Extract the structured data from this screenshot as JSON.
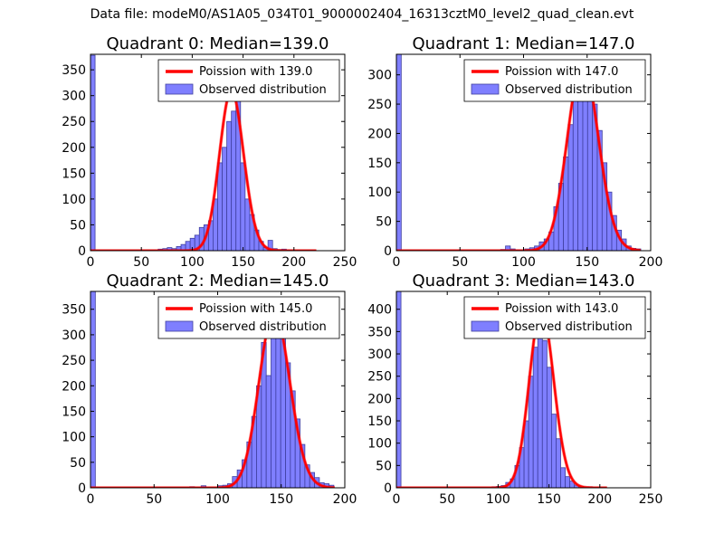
{
  "suptitle": "Data file: modeM0/AS1A05_034T01_9000002404_16313cztM0_level2_quad_clean.evt",
  "colors": {
    "hist_fill": "#7f7fff",
    "hist_edge": "#3f3f9f",
    "curve": "#ff0000"
  },
  "chart_data": [
    {
      "type": "bar",
      "title": "Quadrant 0: Median=139.0",
      "median": 139.0,
      "xlim": [
        0,
        250
      ],
      "ylim": [
        0,
        380
      ],
      "xticks": [
        0,
        50,
        100,
        150,
        200,
        250
      ],
      "yticks": [
        0,
        50,
        100,
        150,
        200,
        250,
        300,
        350
      ],
      "legend": {
        "placement": "top-right",
        "entries": [
          "Poission with 139.0",
          "Observed distribution"
        ]
      },
      "bins": [
        {
          "x0": 0,
          "x1": 4.5,
          "v": 378
        },
        {
          "x0": 62,
          "x1": 66.5,
          "v": 1
        },
        {
          "x0": 66.5,
          "x1": 71,
          "v": 3
        },
        {
          "x0": 71,
          "x1": 75.5,
          "v": 4
        },
        {
          "x0": 75.5,
          "x1": 80,
          "v": 6
        },
        {
          "x0": 80,
          "x1": 84.5,
          "v": 4
        },
        {
          "x0": 84.5,
          "x1": 89,
          "v": 8
        },
        {
          "x0": 89,
          "x1": 93.5,
          "v": 12
        },
        {
          "x0": 93.5,
          "x1": 98,
          "v": 18
        },
        {
          "x0": 98,
          "x1": 102.5,
          "v": 24
        },
        {
          "x0": 102.5,
          "x1": 107,
          "v": 30
        },
        {
          "x0": 107,
          "x1": 111.5,
          "v": 45
        },
        {
          "x0": 111.5,
          "x1": 116,
          "v": 50
        },
        {
          "x0": 116,
          "x1": 120.5,
          "v": 58
        },
        {
          "x0": 120.5,
          "x1": 125,
          "v": 100
        },
        {
          "x0": 125,
          "x1": 129.5,
          "v": 170
        },
        {
          "x0": 129.5,
          "x1": 134,
          "v": 200
        },
        {
          "x0": 134,
          "x1": 138.5,
          "v": 250
        },
        {
          "x0": 138.5,
          "x1": 143,
          "v": 270
        },
        {
          "x0": 143,
          "x1": 147.5,
          "v": 310
        },
        {
          "x0": 147.5,
          "x1": 152,
          "v": 170
        },
        {
          "x0": 152,
          "x1": 156.5,
          "v": 100
        },
        {
          "x0": 156.5,
          "x1": 161,
          "v": 70
        },
        {
          "x0": 161,
          "x1": 165.5,
          "v": 40
        },
        {
          "x0": 165.5,
          "x1": 170,
          "v": 18
        },
        {
          "x0": 170,
          "x1": 174.5,
          "v": 6
        },
        {
          "x0": 174.5,
          "x1": 179,
          "v": 20
        },
        {
          "x0": 179,
          "x1": 183.5,
          "v": 4
        },
        {
          "x0": 183.5,
          "x1": 188,
          "v": 2
        },
        {
          "x0": 188,
          "x1": 192.5,
          "v": 3
        },
        {
          "x0": 205,
          "x1": 209.5,
          "v": 1
        },
        {
          "x0": 215,
          "x1": 219.5,
          "v": 1
        }
      ],
      "curve_x": [
        0,
        222
      ]
    },
    {
      "type": "bar",
      "title": "Quadrant 1: Median=147.0",
      "median": 147.0,
      "xlim": [
        0,
        200
      ],
      "ylim": [
        0,
        335
      ],
      "xticks": [
        0,
        50,
        100,
        150,
        200
      ],
      "yticks": [
        0,
        50,
        100,
        150,
        200,
        250,
        300
      ],
      "legend": {
        "placement": "top-right",
        "entries": [
          "Poission with 147.0",
          "Observed distribution"
        ]
      },
      "bins": [
        {
          "x0": 0,
          "x1": 3.8,
          "v": 335
        },
        {
          "x0": 82,
          "x1": 85.8,
          "v": 2
        },
        {
          "x0": 85.8,
          "x1": 89.6,
          "v": 8
        },
        {
          "x0": 89.6,
          "x1": 93.4,
          "v": 3
        },
        {
          "x0": 93.4,
          "x1": 97.2,
          "v": 1
        },
        {
          "x0": 101,
          "x1": 104.8,
          "v": 3
        },
        {
          "x0": 104.8,
          "x1": 108.6,
          "v": 5
        },
        {
          "x0": 108.6,
          "x1": 112.4,
          "v": 8
        },
        {
          "x0": 112.4,
          "x1": 116.2,
          "v": 15
        },
        {
          "x0": 116.2,
          "x1": 120,
          "v": 20
        },
        {
          "x0": 120,
          "x1": 123.8,
          "v": 32
        },
        {
          "x0": 123.8,
          "x1": 127.6,
          "v": 75
        },
        {
          "x0": 127.6,
          "x1": 131.4,
          "v": 115
        },
        {
          "x0": 131.4,
          "x1": 135.2,
          "v": 160
        },
        {
          "x0": 135.2,
          "x1": 139,
          "v": 215
        },
        {
          "x0": 139,
          "x1": 142.8,
          "v": 265
        },
        {
          "x0": 142.8,
          "x1": 146.6,
          "v": 300
        },
        {
          "x0": 146.6,
          "x1": 150.4,
          "v": 320
        },
        {
          "x0": 150.4,
          "x1": 154.2,
          "v": 290
        },
        {
          "x0": 154.2,
          "x1": 158,
          "v": 250
        },
        {
          "x0": 158,
          "x1": 161.8,
          "v": 205
        },
        {
          "x0": 161.8,
          "x1": 165.6,
          "v": 150
        },
        {
          "x0": 165.6,
          "x1": 169.4,
          "v": 100
        },
        {
          "x0": 169.4,
          "x1": 173.2,
          "v": 60
        },
        {
          "x0": 173.2,
          "x1": 177,
          "v": 35
        },
        {
          "x0": 177,
          "x1": 180.8,
          "v": 20
        },
        {
          "x0": 180.8,
          "x1": 184.6,
          "v": 8
        },
        {
          "x0": 184.6,
          "x1": 188.4,
          "v": 4
        },
        {
          "x0": 188.4,
          "x1": 192.2,
          "v": 3
        }
      ],
      "curve_x": [
        0,
        192
      ]
    },
    {
      "type": "bar",
      "title": "Quadrant 2: Median=145.0",
      "median": 145.0,
      "xlim": [
        0,
        200
      ],
      "ylim": [
        0,
        385
      ],
      "xticks": [
        0,
        50,
        100,
        150,
        200
      ],
      "yticks": [
        0,
        50,
        100,
        150,
        200,
        250,
        300,
        350
      ],
      "legend": {
        "placement": "top-right",
        "entries": [
          "Poission with 145.0",
          "Observed distribution"
        ]
      },
      "bins": [
        {
          "x0": 0,
          "x1": 3.8,
          "v": 385
        },
        {
          "x0": 78,
          "x1": 81.8,
          "v": 2
        },
        {
          "x0": 87,
          "x1": 90.8,
          "v": 4
        },
        {
          "x0": 90.8,
          "x1": 94.6,
          "v": 1
        },
        {
          "x0": 96,
          "x1": 99.8,
          "v": 1
        },
        {
          "x0": 100,
          "x1": 103.8,
          "v": 4
        },
        {
          "x0": 104,
          "x1": 107.8,
          "v": 5
        },
        {
          "x0": 107.8,
          "x1": 111.6,
          "v": 8
        },
        {
          "x0": 111.6,
          "x1": 115.4,
          "v": 22
        },
        {
          "x0": 115.4,
          "x1": 119.2,
          "v": 35
        },
        {
          "x0": 119.2,
          "x1": 123,
          "v": 55
        },
        {
          "x0": 123,
          "x1": 126.8,
          "v": 90
        },
        {
          "x0": 126.8,
          "x1": 130.6,
          "v": 140
        },
        {
          "x0": 130.6,
          "x1": 134.4,
          "v": 200
        },
        {
          "x0": 134.4,
          "x1": 138.2,
          "v": 285
        },
        {
          "x0": 138.2,
          "x1": 142,
          "v": 220
        },
        {
          "x0": 142,
          "x1": 145.8,
          "v": 330
        },
        {
          "x0": 145.8,
          "x1": 149.6,
          "v": 345
        },
        {
          "x0": 149.6,
          "x1": 153.4,
          "v": 310
        },
        {
          "x0": 153.4,
          "x1": 157.2,
          "v": 245
        },
        {
          "x0": 157.2,
          "x1": 161,
          "v": 190
        },
        {
          "x0": 161,
          "x1": 164.8,
          "v": 135
        },
        {
          "x0": 164.8,
          "x1": 168.6,
          "v": 85
        },
        {
          "x0": 168.6,
          "x1": 172.4,
          "v": 45
        },
        {
          "x0": 172.4,
          "x1": 176.2,
          "v": 30
        },
        {
          "x0": 176.2,
          "x1": 180,
          "v": 20
        },
        {
          "x0": 180,
          "x1": 183.8,
          "v": 10
        },
        {
          "x0": 183.8,
          "x1": 187.6,
          "v": 8
        },
        {
          "x0": 187.6,
          "x1": 191.4,
          "v": 5
        }
      ],
      "curve_x": [
        0,
        192
      ]
    },
    {
      "type": "bar",
      "title": "Quadrant 3: Median=143.0",
      "median": 143.0,
      "xlim": [
        0,
        250
      ],
      "ylim": [
        0,
        440
      ],
      "xticks": [
        0,
        50,
        100,
        150,
        200,
        250
      ],
      "yticks": [
        0,
        50,
        100,
        150,
        200,
        250,
        300,
        350,
        400
      ],
      "legend": {
        "placement": "top-right",
        "entries": [
          "Poission with 143.0",
          "Observed distribution"
        ]
      },
      "bins": [
        {
          "x0": 0,
          "x1": 4.5,
          "v": 440
        },
        {
          "x0": 94,
          "x1": 98.5,
          "v": 2
        },
        {
          "x0": 98.5,
          "x1": 103,
          "v": 3
        },
        {
          "x0": 103,
          "x1": 107.5,
          "v": 5
        },
        {
          "x0": 107.5,
          "x1": 112,
          "v": 12
        },
        {
          "x0": 112,
          "x1": 116.5,
          "v": 20
        },
        {
          "x0": 116.5,
          "x1": 121,
          "v": 50
        },
        {
          "x0": 121,
          "x1": 125.5,
          "v": 90
        },
        {
          "x0": 125.5,
          "x1": 130,
          "v": 150
        },
        {
          "x0": 130,
          "x1": 134.5,
          "v": 250
        },
        {
          "x0": 134.5,
          "x1": 139,
          "v": 315
        },
        {
          "x0": 139,
          "x1": 143.5,
          "v": 400
        },
        {
          "x0": 143.5,
          "x1": 148,
          "v": 330
        },
        {
          "x0": 148,
          "x1": 152.5,
          "v": 270
        },
        {
          "x0": 152.5,
          "x1": 157,
          "v": 165
        },
        {
          "x0": 157,
          "x1": 161.5,
          "v": 110
        },
        {
          "x0": 161.5,
          "x1": 166,
          "v": 45
        },
        {
          "x0": 166,
          "x1": 170.5,
          "v": 25
        },
        {
          "x0": 170.5,
          "x1": 175,
          "v": 15
        },
        {
          "x0": 175,
          "x1": 179.5,
          "v": 6
        },
        {
          "x0": 179.5,
          "x1": 184,
          "v": 3
        },
        {
          "x0": 184,
          "x1": 188.5,
          "v": 2
        },
        {
          "x0": 188.5,
          "x1": 193,
          "v": 2
        }
      ],
      "curve_x": [
        0,
        207
      ]
    }
  ]
}
